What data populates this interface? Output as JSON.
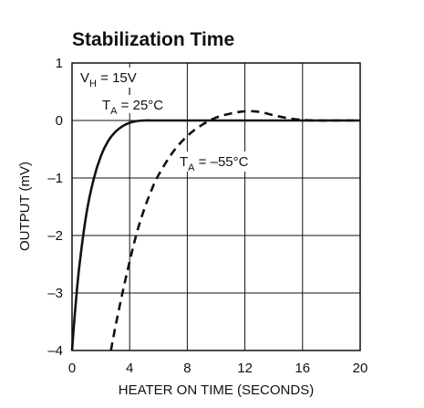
{
  "chart_data": {
    "type": "line",
    "title": "Stabilization Time",
    "xlabel": "HEATER ON TIME (SECONDS)",
    "ylabel": "OUTPUT (mV)",
    "xlim": [
      0,
      20
    ],
    "ylim": [
      -4,
      1
    ],
    "xticks": [
      "0",
      "4",
      "8",
      "12",
      "16",
      "20"
    ],
    "xtick_values": [
      0,
      4,
      8,
      12,
      16,
      20
    ],
    "yticks": [
      "1",
      "0",
      "–1",
      "–2",
      "–3",
      "–4"
    ],
    "ytick_values": [
      1,
      0,
      -1,
      -2,
      -3,
      -4
    ],
    "grid": true,
    "annotations": {
      "vh": {
        "main": "V",
        "sub": "H",
        "rest": " = 15V"
      },
      "ta25": {
        "main": "T",
        "sub": "A",
        "rest": " = 25°C"
      },
      "ta55": {
        "main": "T",
        "sub": "A",
        "rest": " = –55°C"
      }
    },
    "series": [
      {
        "name": "T_A = 25°C",
        "style": "solid",
        "color": "#111111",
        "x": [
          0.0,
          0.2,
          0.5,
          1.0,
          1.5,
          2.0,
          2.5,
          3.0,
          3.5,
          4.0,
          4.5,
          5.0,
          5.5,
          6.0,
          8.0,
          12.0,
          16.0,
          20.0
        ],
        "y": [
          -4.0,
          -3.35,
          -2.55,
          -1.62,
          -1.02,
          -0.62,
          -0.36,
          -0.2,
          -0.1,
          -0.04,
          -0.01,
          0.0,
          0.0,
          0.0,
          0.0,
          0.0,
          0.0,
          0.0
        ]
      },
      {
        "name": "T_A = –55°C",
        "style": "dashed",
        "color": "#111111",
        "x": [
          2.7,
          3.0,
          3.5,
          4.0,
          4.5,
          5.0,
          5.5,
          6.0,
          7.0,
          8.0,
          9.0,
          10.0,
          11.0,
          12.0,
          13.0,
          14.0,
          15.0,
          16.0,
          17.0,
          18.0,
          20.0
        ],
        "y": [
          -4.0,
          -3.6,
          -3.0,
          -2.45,
          -1.95,
          -1.55,
          -1.22,
          -0.95,
          -0.55,
          -0.27,
          -0.08,
          0.05,
          0.12,
          0.16,
          0.15,
          0.09,
          0.04,
          0.01,
          0.0,
          0.0,
          0.0
        ]
      }
    ]
  }
}
